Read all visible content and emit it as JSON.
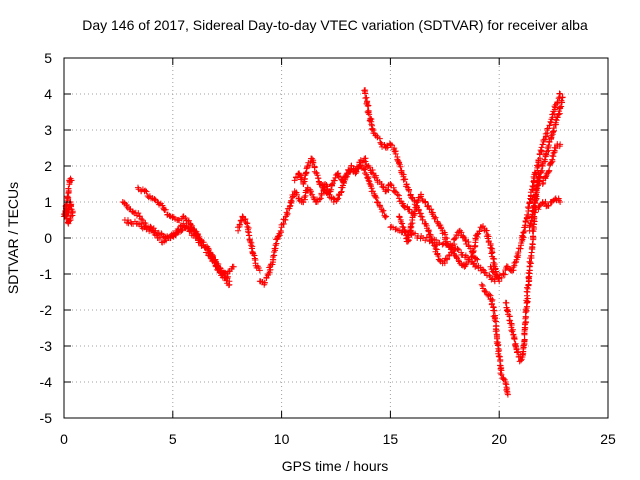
{
  "chart_data": {
    "type": "scatter",
    "title": "Day 146 of 2017, Sidereal Day-to-day VTEC variation (SDTVAR) for receiver alba",
    "xlabel": "GPS time / hours",
    "ylabel": "SDTVAR / TECUs",
    "xlim": [
      0,
      25
    ],
    "ylim": [
      -5,
      5
    ],
    "xticks": [
      0,
      5,
      10,
      15,
      20,
      25
    ],
    "yticks": [
      -5,
      -4,
      -3,
      -2,
      -1,
      0,
      1,
      2,
      3,
      4,
      5
    ],
    "grid": true,
    "legend": "none",
    "marker": "plus",
    "color": "#ff0000",
    "series": [
      {
        "name": "alba",
        "x": [
          0.0,
          0.1,
          0.2,
          0.3,
          0.35,
          0.4,
          0.3,
          0.2,
          0.1,
          0.05,
          0.25,
          0.3,
          0.35
        ],
        "y": [
          0.6,
          0.9,
          0.7,
          1.0,
          0.8,
          0.7,
          0.5,
          0.4,
          0.8,
          0.6,
          1.6,
          1.65,
          1.6
        ]
      },
      {
        "name": "alba",
        "x": [
          2.7,
          3.0,
          3.3,
          3.6,
          3.9,
          4.2,
          4.5,
          4.8,
          5.1,
          5.4,
          5.7,
          6.0,
          6.3,
          6.6,
          6.9,
          7.2,
          7.5,
          7.8
        ],
        "y": [
          1.0,
          0.8,
          0.7,
          0.5,
          0.3,
          0.2,
          0.1,
          0.0,
          0.1,
          0.2,
          0.3,
          0.2,
          -0.1,
          -0.3,
          -0.6,
          -0.9,
          -1.0,
          -0.8
        ]
      },
      {
        "name": "alba",
        "x": [
          2.8,
          3.1,
          3.4,
          3.7,
          4.0,
          4.3,
          4.6,
          4.9,
          5.2,
          5.5,
          5.8,
          6.1,
          6.4,
          6.7,
          7.0,
          7.3,
          7.6
        ],
        "y": [
          0.5,
          0.4,
          0.4,
          0.3,
          0.2,
          0.0,
          -0.1,
          0.0,
          0.2,
          0.4,
          0.2,
          0.0,
          -0.2,
          -0.5,
          -0.8,
          -1.1,
          -1.3
        ]
      },
      {
        "name": "alba",
        "x": [
          3.4,
          3.7,
          4.0,
          4.3,
          4.6,
          4.9,
          5.2,
          5.5,
          5.8,
          6.1,
          6.4,
          6.7,
          7.0,
          7.3,
          7.6
        ],
        "y": [
          1.4,
          1.3,
          1.1,
          1.0,
          0.8,
          0.6,
          0.5,
          0.6,
          0.4,
          0.1,
          -0.2,
          -0.4,
          -0.7,
          -1.0,
          -1.2
        ]
      },
      {
        "name": "alba",
        "x": [
          8.0,
          8.2,
          8.4,
          8.6,
          8.8,
          9.0
        ],
        "y": [
          0.2,
          0.6,
          0.4,
          -0.2,
          -0.7,
          -0.9
        ]
      },
      {
        "name": "alba",
        "x": [
          9.0,
          9.2,
          9.4,
          9.6,
          9.8,
          10.0,
          10.2,
          10.4,
          10.6,
          10.8,
          11.0,
          11.2,
          11.4,
          11.6,
          11.8,
          12.0,
          12.2,
          12.4,
          12.6,
          12.8,
          13.0,
          13.2,
          13.4,
          13.6,
          13.8,
          14.0,
          14.2,
          14.4,
          14.6,
          14.8
        ],
        "y": [
          -1.2,
          -1.3,
          -1.0,
          -0.6,
          0.0,
          0.3,
          0.6,
          0.9,
          1.3,
          1.1,
          1.0,
          1.4,
          1.2,
          1.0,
          1.1,
          1.5,
          1.3,
          1.6,
          1.8,
          1.6,
          1.7,
          1.9,
          1.8,
          2.0,
          1.9,
          1.6,
          1.3,
          1.0,
          0.8,
          0.6
        ]
      },
      {
        "name": "alba",
        "x": [
          10.6,
          10.8,
          11.0,
          11.2,
          11.4,
          11.6,
          11.8,
          12.0,
          12.2,
          12.4,
          12.6,
          12.8,
          13.0,
          13.2,
          13.4,
          13.6,
          13.8,
          14.0,
          14.2,
          14.4,
          14.6,
          14.8,
          15.0,
          15.2,
          15.4,
          15.6,
          15.8,
          16.0
        ],
        "y": [
          1.6,
          1.8,
          1.5,
          2.0,
          2.2,
          1.8,
          1.5,
          1.3,
          1.2,
          1.0,
          1.1,
          1.4,
          1.8,
          2.0,
          1.8,
          2.1,
          2.2,
          2.0,
          1.8,
          1.6,
          1.5,
          1.3,
          1.5,
          1.3,
          1.1,
          0.9,
          0.8,
          0.7
        ]
      },
      {
        "name": "alba",
        "x": [
          13.8,
          13.9,
          14.0,
          14.2,
          14.4,
          14.6,
          14.8,
          15.0,
          15.2,
          15.4,
          15.6,
          15.8,
          16.0,
          16.2,
          16.4,
          16.6,
          16.8,
          17.0,
          17.2,
          17.4,
          17.6,
          17.8,
          18.0,
          18.2,
          18.4,
          18.6,
          18.8,
          19.0
        ],
        "y": [
          4.1,
          3.9,
          3.5,
          3.0,
          2.8,
          2.6,
          2.5,
          2.6,
          2.4,
          2.1,
          1.7,
          1.4,
          1.1,
          0.9,
          0.6,
          0.4,
          0.1,
          -0.2,
          -0.5,
          -0.7,
          -0.6,
          -0.4,
          -0.5,
          -0.7,
          -0.8,
          -0.6,
          -0.5,
          -0.6
        ]
      },
      {
        "name": "alba",
        "x": [
          15.4,
          15.6,
          15.8,
          16.0,
          16.2,
          16.4,
          16.6,
          16.8,
          17.0,
          17.2,
          17.4,
          17.6,
          17.8,
          18.0,
          18.2,
          18.4,
          18.6,
          18.8,
          19.0,
          19.2,
          19.4,
          19.6,
          19.8,
          20.0
        ],
        "y": [
          0.6,
          0.3,
          -0.1,
          0.5,
          0.9,
          1.2,
          1.0,
          0.8,
          0.6,
          0.4,
          0.2,
          -0.1,
          -0.3,
          0.0,
          0.2,
          0.0,
          -0.2,
          -0.4,
          0.1,
          0.3,
          0.2,
          -0.2,
          -0.8,
          -1.2
        ]
      },
      {
        "name": "alba",
        "x": [
          19.2,
          19.4,
          19.6,
          19.8,
          19.9,
          20.0,
          20.1,
          20.2,
          20.3,
          20.4
        ],
        "y": [
          -1.3,
          -1.5,
          -1.6,
          -2.2,
          -2.8,
          -3.3,
          -3.8,
          -3.9,
          -4.0,
          -4.35
        ]
      },
      {
        "name": "alba",
        "x": [
          20.3,
          20.5,
          20.7,
          20.8,
          20.9,
          21.0,
          21.1,
          21.2,
          21.3,
          21.4,
          21.5,
          21.6,
          21.7,
          21.8
        ],
        "y": [
          -1.8,
          -2.3,
          -2.8,
          -3.1,
          -3.3,
          -3.4,
          -3.2,
          -2.5,
          -1.5,
          -0.8,
          -0.3,
          0.5,
          1.2,
          1.8
        ]
      },
      {
        "name": "alba",
        "x": [
          19.6,
          19.8,
          20.0,
          20.2,
          20.4,
          20.6,
          20.8,
          21.0,
          21.2,
          21.4,
          21.6,
          21.8,
          22.0,
          22.2,
          22.4,
          22.6,
          22.8
        ],
        "y": [
          -0.8,
          -1.0,
          -1.1,
          -1.0,
          -0.8,
          -0.9,
          -0.6,
          -0.2,
          0.3,
          1.0,
          1.6,
          2.1,
          2.6,
          3.0,
          3.3,
          3.7,
          4.0
        ]
      },
      {
        "name": "alba",
        "x": [
          21.4,
          21.6,
          21.8,
          22.0,
          22.2,
          22.4,
          22.6,
          22.8,
          22.9
        ],
        "y": [
          0.2,
          0.9,
          1.5,
          2.0,
          2.4,
          2.8,
          3.2,
          3.6,
          3.9
        ]
      },
      {
        "name": "alba",
        "x": [
          21.8,
          22.0,
          22.2,
          22.4,
          22.6,
          22.8
        ],
        "y": [
          0.8,
          1.0,
          0.9,
          1.0,
          1.1,
          1.0
        ]
      },
      {
        "name": "alba",
        "x": [
          22.0,
          22.2,
          22.4,
          22.6,
          22.8
        ],
        "y": [
          1.5,
          1.8,
          2.1,
          2.5,
          2.6
        ]
      },
      {
        "name": "alba",
        "x": [
          15.0,
          16.5,
          18.0,
          19.8
        ],
        "y": [
          0.3,
          0.0,
          -0.3,
          -1.2
        ]
      }
    ]
  }
}
